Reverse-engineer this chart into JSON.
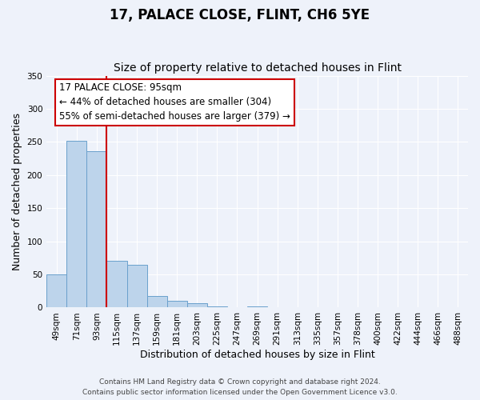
{
  "title": "17, PALACE CLOSE, FLINT, CH6 5YE",
  "subtitle": "Size of property relative to detached houses in Flint",
  "xlabel": "Distribution of detached houses by size in Flint",
  "ylabel": "Number of detached properties",
  "bar_labels": [
    "49sqm",
    "71sqm",
    "93sqm",
    "115sqm",
    "137sqm",
    "159sqm",
    "181sqm",
    "203sqm",
    "225sqm",
    "247sqm",
    "269sqm",
    "291sqm",
    "313sqm",
    "335sqm",
    "357sqm",
    "378sqm",
    "400sqm",
    "422sqm",
    "444sqm",
    "466sqm",
    "488sqm"
  ],
  "bar_values": [
    50,
    252,
    236,
    70,
    65,
    17,
    10,
    6,
    2,
    0,
    2,
    0,
    0,
    0,
    0,
    0,
    0,
    0,
    0,
    0,
    0
  ],
  "bar_color": "#bdd4eb",
  "bar_edge_color": "#6aa0cc",
  "vline_color": "#cc0000",
  "annotation_text": "17 PALACE CLOSE: 95sqm\n← 44% of detached houses are smaller (304)\n55% of semi-detached houses are larger (379) →",
  "annotation_box_color": "#ffffff",
  "annotation_box_edge": "#cc0000",
  "ylim": [
    0,
    350
  ],
  "yticks": [
    0,
    50,
    100,
    150,
    200,
    250,
    300,
    350
  ],
  "footer1": "Contains HM Land Registry data © Crown copyright and database right 2024.",
  "footer2": "Contains public sector information licensed under the Open Government Licence v3.0.",
  "background_color": "#eef2fa",
  "grid_color": "#ffffff",
  "title_fontsize": 12,
  "subtitle_fontsize": 10,
  "axis_label_fontsize": 9,
  "tick_fontsize": 7.5,
  "annotation_fontsize": 8.5,
  "footer_fontsize": 6.5
}
